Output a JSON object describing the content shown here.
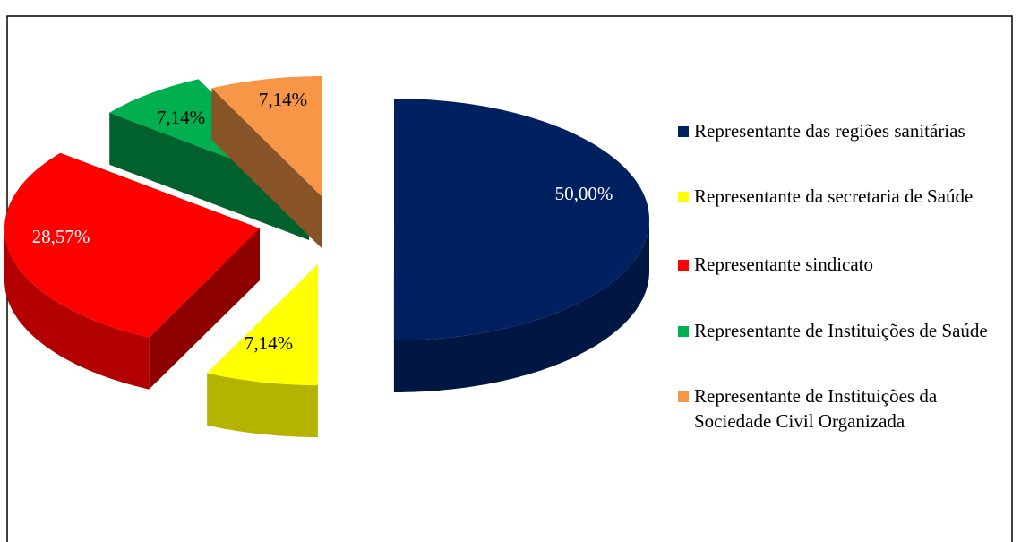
{
  "chart_data": {
    "type": "pie",
    "categories": [
      "Representante das regiões sanitárias",
      "Representante da secretaria de Saúde",
      "Representante sindicato",
      "Representante de Instituições de Saúde",
      "Representante de Instituições da Sociedade Civil Organizada"
    ],
    "values": [
      50,
      7.14,
      28.57,
      7.14,
      7.14
    ],
    "value_labels": [
      "50,00%",
      "7,14%",
      "28,57%",
      "7,14%",
      "7,14%"
    ],
    "colors": [
      "#002060",
      "#ffff00",
      "#ff0000",
      "#00b050",
      "#f79646"
    ],
    "legend": "right"
  }
}
